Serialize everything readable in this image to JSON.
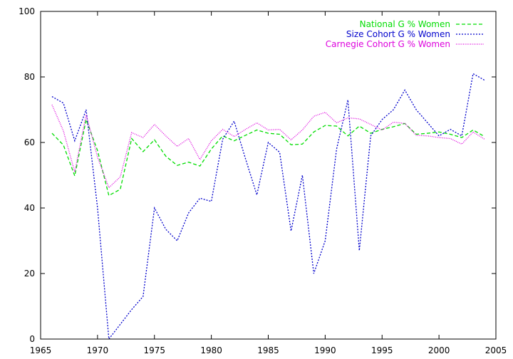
{
  "chart_data": {
    "type": "line",
    "title": "",
    "xlabel": "",
    "ylabel": "",
    "xlim": [
      1965,
      2005
    ],
    "ylim": [
      0,
      100
    ],
    "xticks": [
      "1965",
      "1970",
      "1975",
      "1980",
      "1985",
      "1990",
      "1995",
      "2000",
      "2005"
    ],
    "yticks": [
      "0",
      "20",
      "40",
      "60",
      "80",
      "100"
    ],
    "grid": false,
    "legend_position": "top-right",
    "x": [
      1966,
      1967,
      1968,
      1969,
      1970,
      1971,
      1972,
      1973,
      1974,
      1975,
      1976,
      1977,
      1978,
      1979,
      1980,
      1981,
      1982,
      1983,
      1984,
      1985,
      1986,
      1987,
      1988,
      1989,
      1990,
      1991,
      1992,
      1993,
      1994,
      1995,
      1996,
      1997,
      1998,
      1999,
      2000,
      2001,
      2002,
      2003,
      2004
    ],
    "series": [
      {
        "name": "National G % Women",
        "color": "#00dd00",
        "dash": "dashed",
        "values": [
          62.8,
          59.2,
          49.8,
          67.0,
          57.5,
          43.8,
          45.7,
          61.2,
          57.2,
          60.8,
          55.8,
          53.0,
          54.0,
          52.8,
          58.0,
          62.0,
          60.5,
          62.2,
          63.8,
          62.8,
          62.5,
          59.3,
          59.5,
          63.2,
          65.2,
          65.0,
          62.0,
          65.0,
          62.8,
          64.0,
          64.8,
          65.8,
          62.5,
          62.8,
          63.2,
          62.5,
          61.5,
          63.8,
          61.8
        ]
      },
      {
        "name": "Size Cohort G % Women",
        "color": "#0000cc",
        "dash": "dotted-dense",
        "values": [
          74.0,
          72.0,
          60.5,
          70.0,
          40.0,
          0.0,
          4.5,
          9.0,
          13.0,
          40.0,
          33.5,
          30.0,
          38.5,
          43.0,
          42.0,
          61.0,
          66.5,
          55.0,
          44.0,
          60.0,
          57.0,
          33.0,
          50.0,
          20.0,
          30.0,
          58.0,
          73.0,
          27.0,
          62.0,
          67.0,
          70.0,
          76.0,
          70.0,
          66.0,
          62.0,
          64.0,
          62.0,
          81.0,
          79.0
        ]
      },
      {
        "name": "Carnegie Cohort G % Women",
        "color": "#dd00dd",
        "dash": "dotted",
        "values": [
          71.5,
          63.5,
          51.0,
          68.5,
          55.5,
          46.2,
          49.5,
          63.0,
          61.5,
          65.5,
          62.0,
          58.8,
          61.2,
          54.8,
          60.5,
          64.0,
          61.8,
          64.0,
          66.0,
          63.8,
          64.0,
          60.8,
          63.8,
          68.0,
          69.2,
          66.0,
          67.5,
          67.2,
          65.5,
          63.8,
          66.2,
          65.8,
          62.2,
          62.0,
          61.5,
          61.2,
          59.5,
          63.2,
          61.0
        ]
      }
    ]
  }
}
